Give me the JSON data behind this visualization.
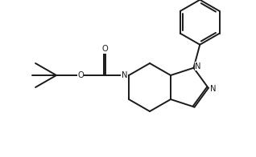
{
  "background_color": "#ffffff",
  "line_color": "#1a1a1a",
  "line_width": 1.4,
  "figsize": [
    3.18,
    1.96
  ],
  "dpi": 100,
  "xlim": [
    0,
    3.18
  ],
  "ylim": [
    0,
    1.96
  ]
}
